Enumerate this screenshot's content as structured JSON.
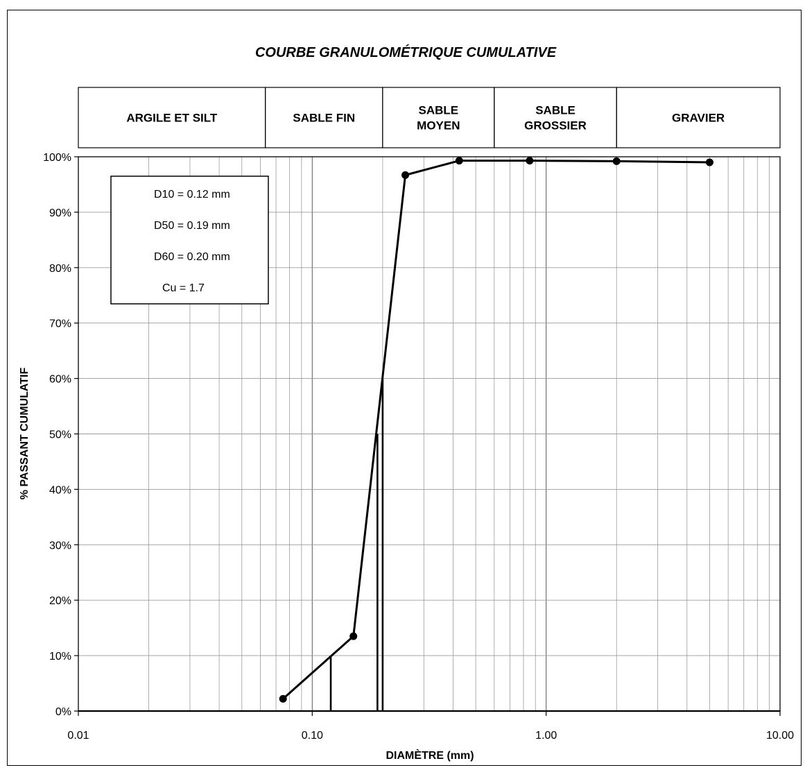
{
  "chart_data": {
    "type": "line",
    "title": "COURBE GRANULOMÉTRIQUE CUMULATIVE",
    "xlabel": "DIAMÈTRE (mm)",
    "ylabel": "% PASSANT CUMULATIF",
    "xscale": "log",
    "xlim": [
      0.01,
      10
    ],
    "ylim": [
      0,
      100
    ],
    "grid": true,
    "x_ticks": [
      0.01,
      0.1,
      1,
      10
    ],
    "x_tick_labels": [
      "0.01",
      "0.10",
      "1.00",
      "10.00"
    ],
    "y_ticks": [
      0,
      10,
      20,
      30,
      40,
      50,
      60,
      70,
      80,
      90,
      100
    ],
    "y_tick_labels": [
      "0%",
      "10%",
      "20%",
      "30%",
      "40%",
      "50%",
      "60%",
      "70%",
      "80%",
      "90%",
      "100%"
    ],
    "series": [
      {
        "x": [
          0.075,
          0.15,
          0.25,
          0.425,
          0.85,
          2.0,
          5.0
        ],
        "y": [
          2.2,
          13.5,
          96.7,
          99.3,
          99.3,
          99.2,
          99.0
        ]
      }
    ],
    "reference_lines": [
      {
        "x": 0.12,
        "y": 10
      },
      {
        "x": 0.19,
        "y": 50
      },
      {
        "x": 0.2,
        "y": 60
      }
    ],
    "size_classes": [
      {
        "label": "ARGILE ET SILT",
        "from": 0.01,
        "to": 0.063
      },
      {
        "label": "SABLE FIN",
        "from": 0.063,
        "to": 0.2
      },
      {
        "label": "SABLE\nMOYEN",
        "from": 0.2,
        "to": 0.6
      },
      {
        "label": "SABLE\nGROSSIER",
        "from": 0.6,
        "to": 2.0
      },
      {
        "label": "GRAVIER",
        "from": 2.0,
        "to": 10
      }
    ],
    "stats": [
      "D10 =  0.12  mm",
      "D50 =  0.19  mm",
      "D60 =  0.20  mm",
      "Cu =  1.7"
    ]
  }
}
